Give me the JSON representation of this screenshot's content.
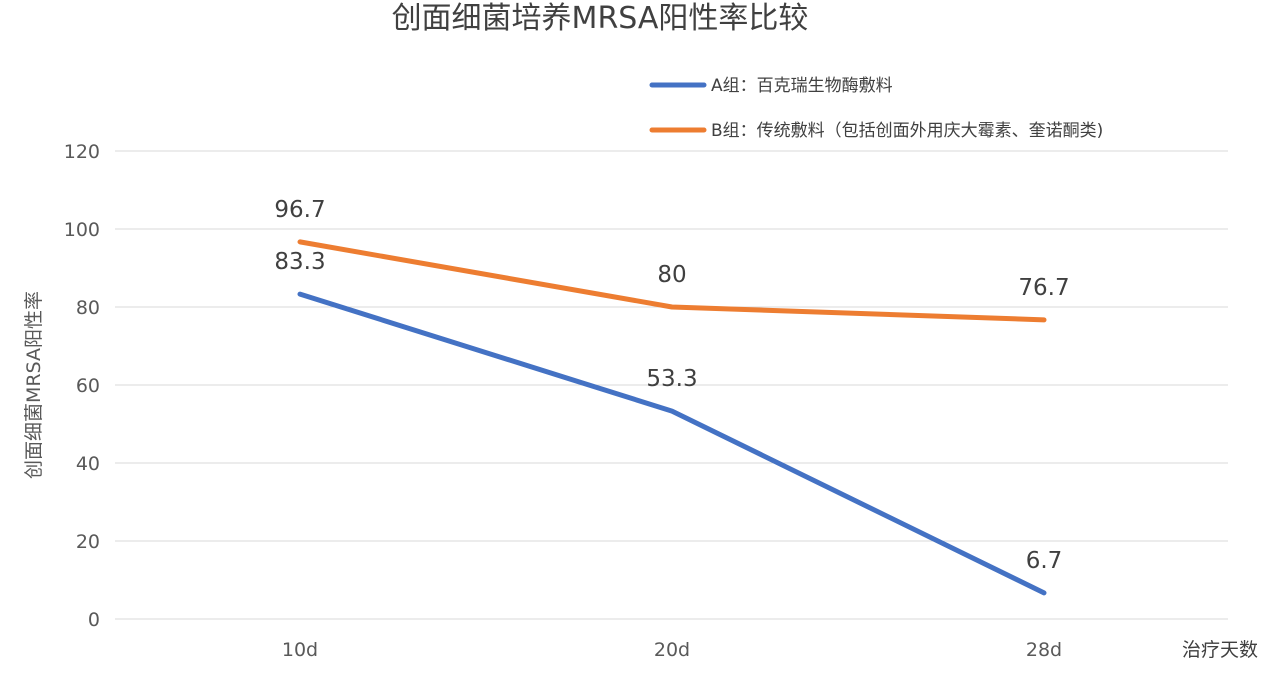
{
  "chart_data": {
    "type": "line",
    "title": "创面细菌培养MRSA阳性率比较",
    "xlabel": "治疗天数",
    "ylabel": "创面细菌MRSA阳性率",
    "categories": [
      "10d",
      "20d",
      "28d"
    ],
    "ylim": [
      0,
      120
    ],
    "yticks": [
      0,
      20,
      40,
      60,
      80,
      100,
      120
    ],
    "grid": true,
    "legend_position": "top-right",
    "series": [
      {
        "name": "A组：百克瑞生物酶敷料",
        "color": "#4472C4",
        "values": [
          83.3,
          53.3,
          6.7
        ]
      },
      {
        "name": "B组：传统敷料（包括创面外用庆大霉素、奎诺酮类)",
        "color": "#ED7D31",
        "values": [
          96.7,
          80,
          76.7
        ]
      }
    ]
  }
}
